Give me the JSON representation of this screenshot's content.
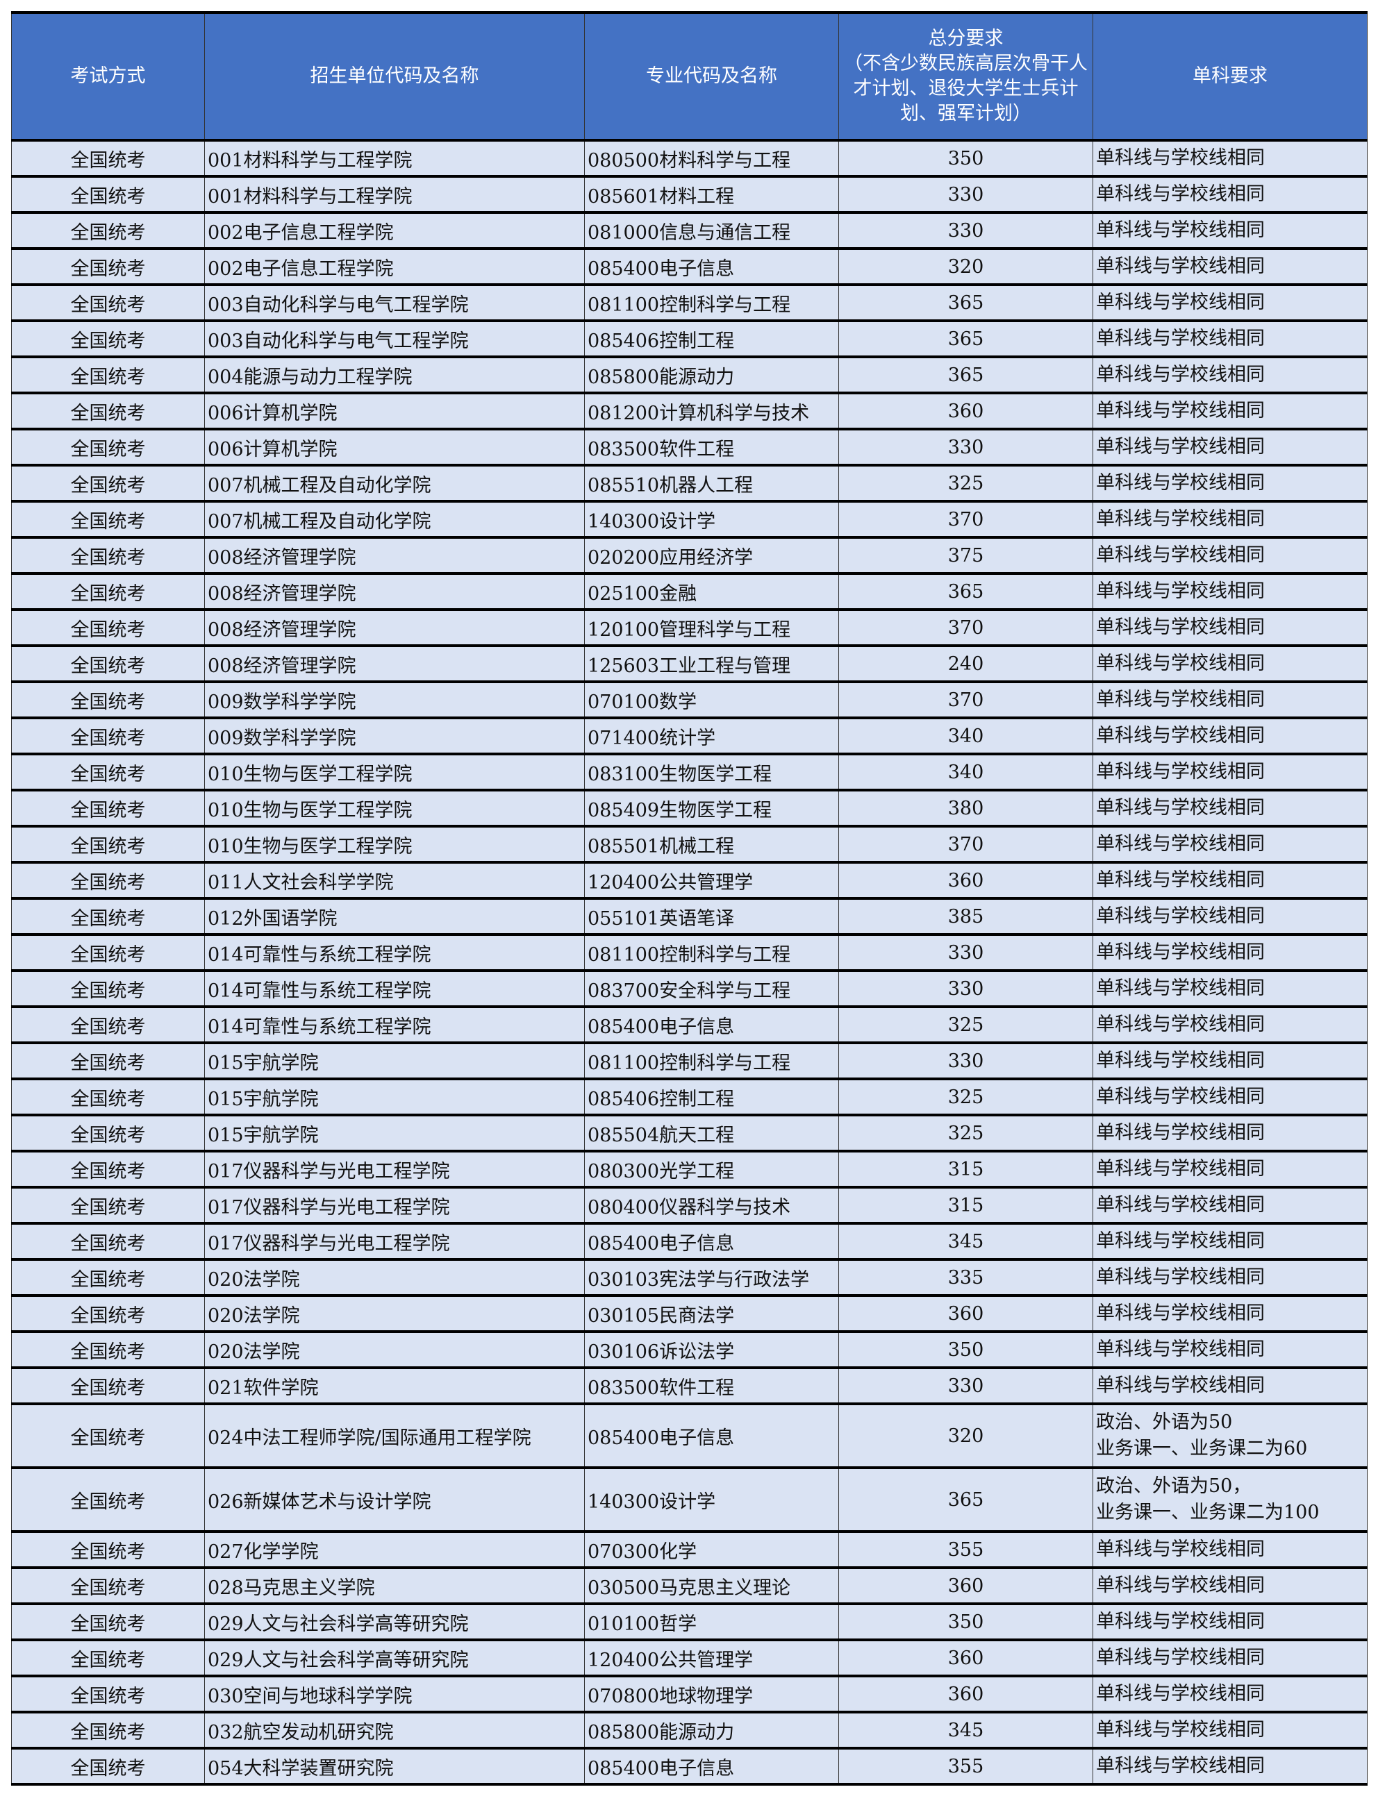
{
  "colors": {
    "header_bg": "#4472c4",
    "row_bg": "#dae3f3"
  },
  "headers": [
    "考试方式",
    "招生单位代码及名称",
    "专业代码及名称",
    "总分要求\n（不含少数民族高层次骨干人才计划、退役大学生士兵计划、强军计划）",
    "单科要求"
  ],
  "rows": [
    [
      "全国统考",
      "001材料科学与工程学院",
      "080500材料科学与工程",
      "350",
      "单科线与学校线相同"
    ],
    [
      "全国统考",
      "001材料科学与工程学院",
      "085601材料工程",
      "330",
      "单科线与学校线相同"
    ],
    [
      "全国统考",
      "002电子信息工程学院",
      "081000信息与通信工程",
      "330",
      "单科线与学校线相同"
    ],
    [
      "全国统考",
      "002电子信息工程学院",
      "085400电子信息",
      "320",
      "单科线与学校线相同"
    ],
    [
      "全国统考",
      "003自动化科学与电气工程学院",
      "081100控制科学与工程",
      "365",
      "单科线与学校线相同"
    ],
    [
      "全国统考",
      "003自动化科学与电气工程学院",
      "085406控制工程",
      "365",
      "单科线与学校线相同"
    ],
    [
      "全国统考",
      "004能源与动力工程学院",
      "085800能源动力",
      "365",
      "单科线与学校线相同"
    ],
    [
      "全国统考",
      "006计算机学院",
      "081200计算机科学与技术",
      "360",
      "单科线与学校线相同"
    ],
    [
      "全国统考",
      "006计算机学院",
      "083500软件工程",
      "330",
      "单科线与学校线相同"
    ],
    [
      "全国统考",
      "007机械工程及自动化学院",
      "085510机器人工程",
      "325",
      "单科线与学校线相同"
    ],
    [
      "全国统考",
      "007机械工程及自动化学院",
      "140300设计学",
      "370",
      "单科线与学校线相同"
    ],
    [
      "全国统考",
      "008经济管理学院",
      "020200应用经济学",
      "375",
      "单科线与学校线相同"
    ],
    [
      "全国统考",
      "008经济管理学院",
      "025100金融",
      "365",
      "单科线与学校线相同"
    ],
    [
      "全国统考",
      "008经济管理学院",
      "120100管理科学与工程",
      "370",
      "单科线与学校线相同"
    ],
    [
      "全国统考",
      "008经济管理学院",
      "125603工业工程与管理",
      "240",
      "单科线与学校线相同"
    ],
    [
      "全国统考",
      "009数学科学学院",
      "070100数学",
      "370",
      "单科线与学校线相同"
    ],
    [
      "全国统考",
      "009数学科学学院",
      "071400统计学",
      "340",
      "单科线与学校线相同"
    ],
    [
      "全国统考",
      "010生物与医学工程学院",
      "083100生物医学工程",
      "340",
      "单科线与学校线相同"
    ],
    [
      "全国统考",
      "010生物与医学工程学院",
      "085409生物医学工程",
      "380",
      "单科线与学校线相同"
    ],
    [
      "全国统考",
      "010生物与医学工程学院",
      "085501机械工程",
      "370",
      "单科线与学校线相同"
    ],
    [
      "全国统考",
      "011人文社会科学学院",
      "120400公共管理学",
      "360",
      "单科线与学校线相同"
    ],
    [
      "全国统考",
      "012外国语学院",
      "055101英语笔译",
      "385",
      "单科线与学校线相同"
    ],
    [
      "全国统考",
      "014可靠性与系统工程学院",
      "081100控制科学与工程",
      "330",
      "单科线与学校线相同"
    ],
    [
      "全国统考",
      "014可靠性与系统工程学院",
      "083700安全科学与工程",
      "330",
      "单科线与学校线相同"
    ],
    [
      "全国统考",
      "014可靠性与系统工程学院",
      "085400电子信息",
      "325",
      "单科线与学校线相同"
    ],
    [
      "全国统考",
      "015宇航学院",
      "081100控制科学与工程",
      "330",
      "单科线与学校线相同"
    ],
    [
      "全国统考",
      "015宇航学院",
      "085406控制工程",
      "325",
      "单科线与学校线相同"
    ],
    [
      "全国统考",
      "015宇航学院",
      "085504航天工程",
      "325",
      "单科线与学校线相同"
    ],
    [
      "全国统考",
      "017仪器科学与光电工程学院",
      "080300光学工程",
      "315",
      "单科线与学校线相同"
    ],
    [
      "全国统考",
      "017仪器科学与光电工程学院",
      "080400仪器科学与技术",
      "315",
      "单科线与学校线相同"
    ],
    [
      "全国统考",
      "017仪器科学与光电工程学院",
      "085400电子信息",
      "345",
      "单科线与学校线相同"
    ],
    [
      "全国统考",
      "020法学院",
      "030103宪法学与行政法学",
      "335",
      "单科线与学校线相同"
    ],
    [
      "全国统考",
      "020法学院",
      "030105民商法学",
      "360",
      "单科线与学校线相同"
    ],
    [
      "全国统考",
      "020法学院",
      "030106诉讼法学",
      "350",
      "单科线与学校线相同"
    ],
    [
      "全国统考",
      "021软件学院",
      "083500软件工程",
      "330",
      "单科线与学校线相同"
    ],
    [
      "全国统考",
      "024中法工程师学院/国际通用工程学院",
      "085400电子信息",
      "320",
      "政治、外语为50\n业务课一、业务课二为60"
    ],
    [
      "全国统考",
      "026新媒体艺术与设计学院",
      "140300设计学",
      "365",
      "政治、外语为50，\n业务课一、业务课二为100"
    ],
    [
      "全国统考",
      "027化学学院",
      "070300化学",
      "355",
      "单科线与学校线相同"
    ],
    [
      "全国统考",
      "028马克思主义学院",
      "030500马克思主义理论",
      "360",
      "单科线与学校线相同"
    ],
    [
      "全国统考",
      "029人文与社会科学高等研究院",
      "010100哲学",
      "350",
      "单科线与学校线相同"
    ],
    [
      "全国统考",
      "029人文与社会科学高等研究院",
      "120400公共管理学",
      "360",
      "单科线与学校线相同"
    ],
    [
      "全国统考",
      "030空间与地球科学学院",
      "070800地球物理学",
      "360",
      "单科线与学校线相同"
    ],
    [
      "全国统考",
      "032航空发动机研究院",
      "085800能源动力",
      "345",
      "单科线与学校线相同"
    ],
    [
      "全国统考",
      "054大科学装置研究院",
      "085400电子信息",
      "355",
      "单科线与学校线相同"
    ]
  ]
}
